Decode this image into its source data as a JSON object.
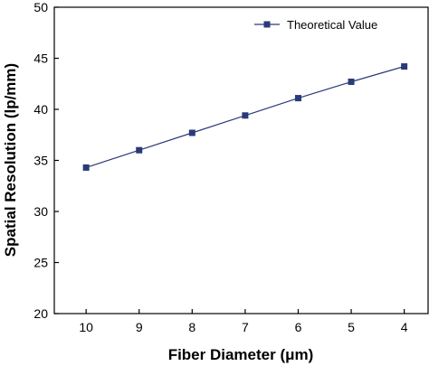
{
  "chart_data": {
    "type": "line",
    "xlabel": "Fiber Diameter (μm)",
    "ylabel": "Spatial Resolution (lp/mm)",
    "x": [
      10,
      9,
      8,
      7,
      6,
      5,
      4
    ],
    "x_reversed": true,
    "xlim": [
      10.6,
      3.55
    ],
    "ylim": [
      20,
      50
    ],
    "yticks": [
      20,
      25,
      30,
      35,
      40,
      45,
      50
    ],
    "xticks": [
      10,
      9,
      8,
      7,
      6,
      5,
      4
    ],
    "grid": false,
    "legend_position": "top-right",
    "series": [
      {
        "name": "Theoretical Value",
        "x": [
          10,
          9,
          8,
          7,
          6,
          5,
          4
        ],
        "values": [
          34.3,
          36.0,
          37.7,
          39.4,
          41.1,
          42.7,
          44.2
        ],
        "color": "#2b3a78",
        "marker": "square"
      }
    ]
  }
}
